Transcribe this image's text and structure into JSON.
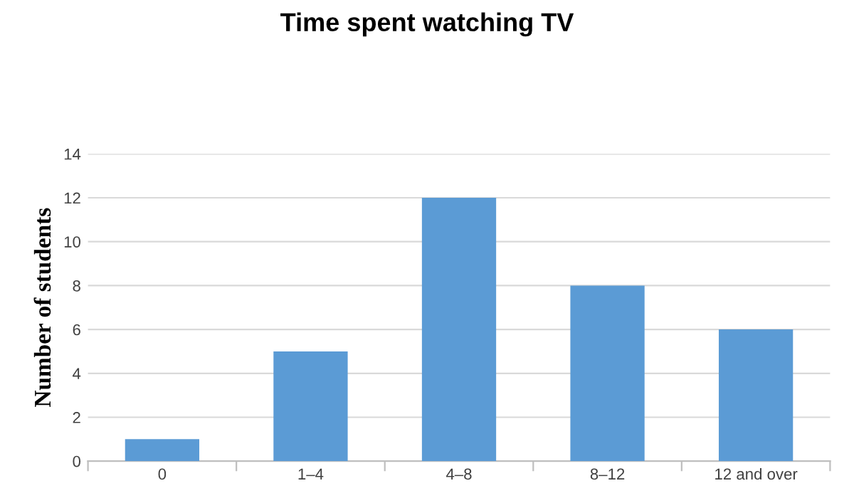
{
  "chart_data": {
    "type": "bar",
    "title": "Time spent watching TV",
    "ylabel": "Number of students",
    "categories": [
      "0",
      "1–4",
      "4–8",
      "8–12",
      "12 and over"
    ],
    "values": [
      1,
      5,
      12,
      8,
      6
    ],
    "color": "#5b9bd5",
    "ylim": [
      0,
      14
    ],
    "yticks": [
      0,
      2,
      4,
      6,
      8,
      10,
      12,
      14
    ],
    "grid": "y"
  }
}
